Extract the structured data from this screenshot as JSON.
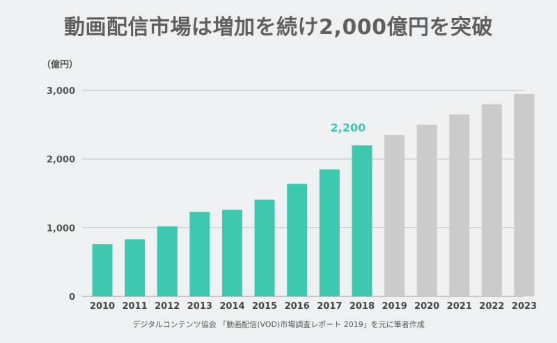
{
  "chart_data": {
    "type": "bar",
    "title": "動画配信市場は増加を続け2,000億円を突破",
    "unit_label": "（億円）",
    "categories": [
      "2010",
      "2011",
      "2012",
      "2013",
      "2014",
      "2015",
      "2016",
      "2017",
      "2018",
      "2019",
      "2020",
      "2021",
      "2022",
      "2023"
    ],
    "values": [
      760,
      830,
      1020,
      1230,
      1260,
      1410,
      1640,
      1850,
      2200,
      2350,
      2500,
      2650,
      2800,
      2950
    ],
    "actual_count": 9,
    "highlight": {
      "category": "2018",
      "label": "2,200"
    },
    "ylim": [
      0,
      3000
    ],
    "yticks": [
      0,
      1000,
      2000,
      3000
    ],
    "ytick_labels": [
      "0",
      "1,000",
      "2,000",
      "3,000"
    ],
    "grid": true,
    "colors": {
      "actual": "#3fc8b0",
      "forecast": "#cbcbcb",
      "highlight_text": "#3fc8b0",
      "grid": "#bdbdbd"
    },
    "source": "デジタルコンテンツ協会 「動画配信(VOD)市場調査レポート 2019」を元に筆者作成"
  }
}
